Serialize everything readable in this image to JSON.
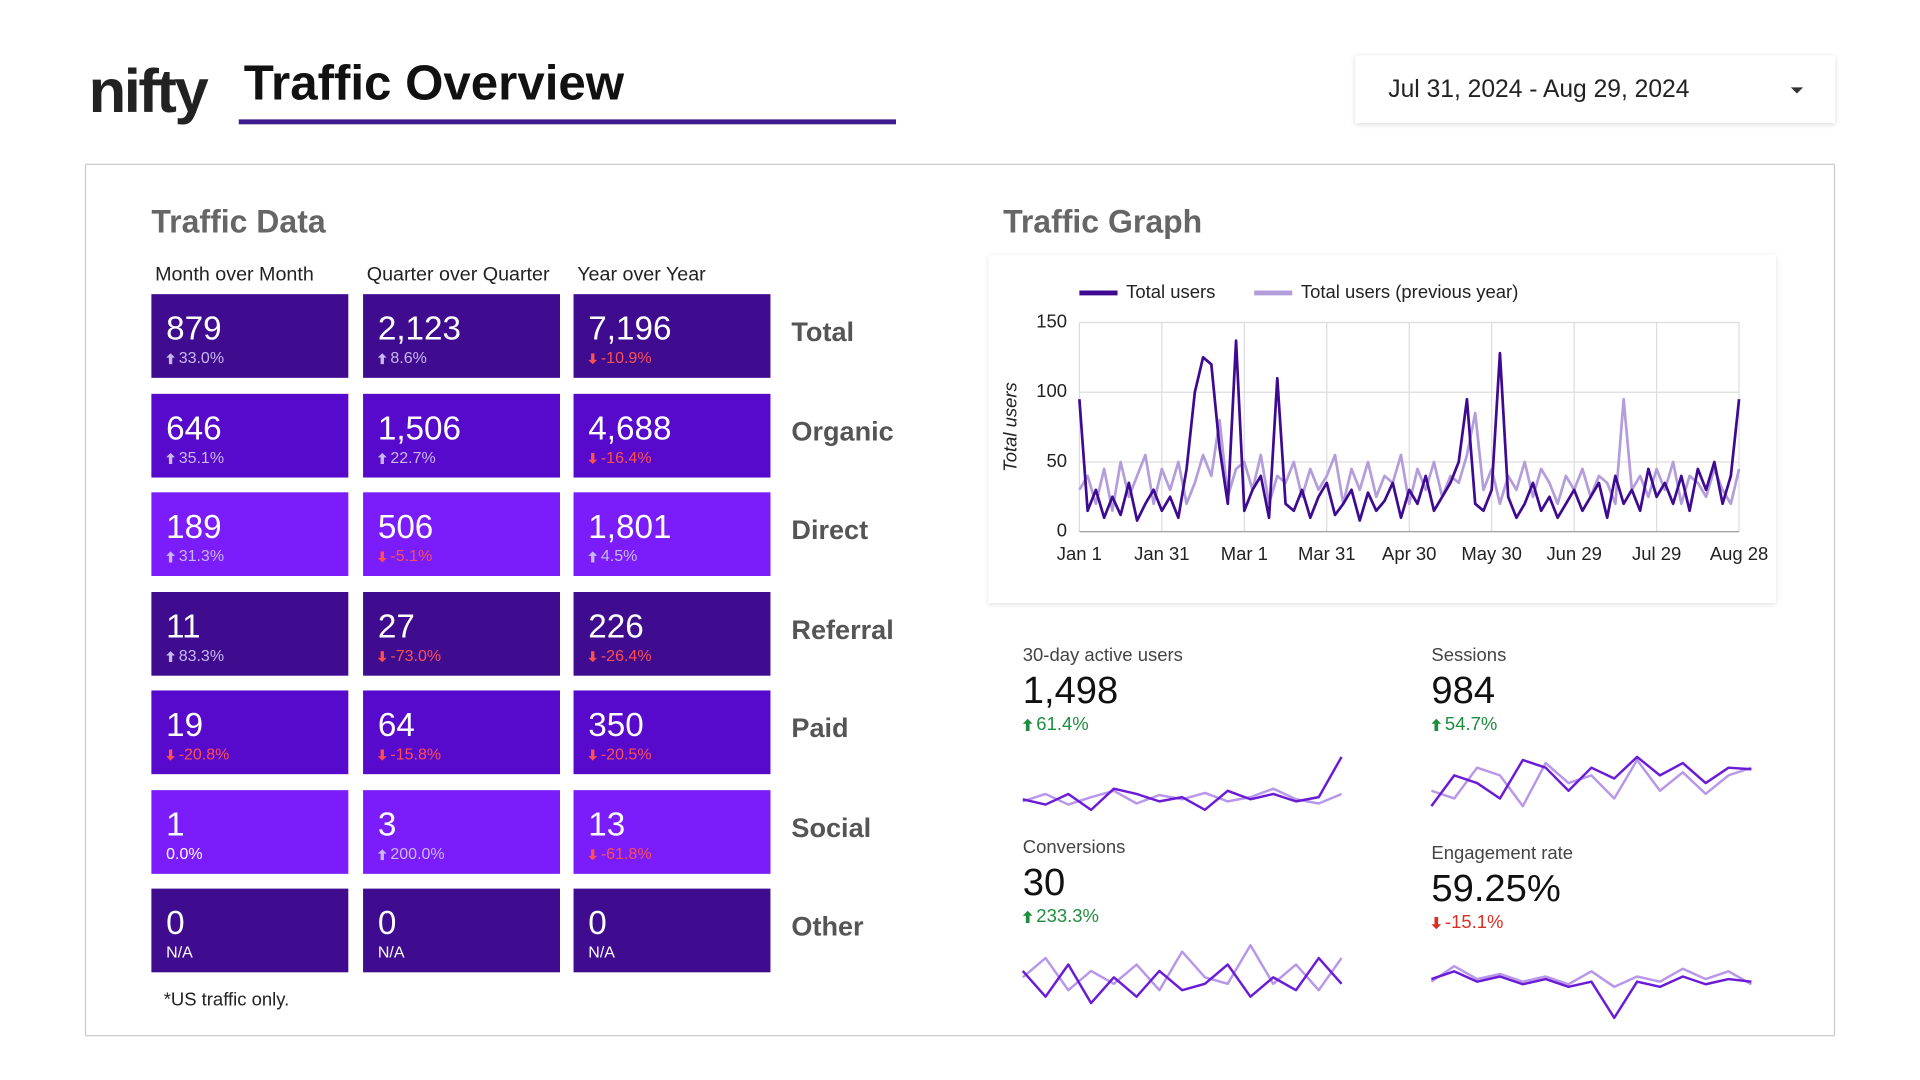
{
  "header": {
    "logo": "nifty",
    "title": "Traffic Overview",
    "date_range": "Jul 31, 2024 - Aug 29, 2024"
  },
  "traffic_data": {
    "title": "Traffic Data",
    "columns": [
      "Month over Month",
      "Quarter over Quarter",
      "Year over Year"
    ],
    "rows": [
      {
        "label": "Total",
        "color": "#3f0c8f",
        "cells": [
          {
            "value": "879",
            "change": "33.0%",
            "trend": "up"
          },
          {
            "value": "2,123",
            "change": "8.6%",
            "trend": "up"
          },
          {
            "value": "7,196",
            "change": "-10.9%",
            "trend": "down"
          }
        ]
      },
      {
        "label": "Organic",
        "color": "#5709cc",
        "cells": [
          {
            "value": "646",
            "change": "35.1%",
            "trend": "up"
          },
          {
            "value": "1,506",
            "change": "22.7%",
            "trend": "up"
          },
          {
            "value": "4,688",
            "change": "-16.4%",
            "trend": "down"
          }
        ]
      },
      {
        "label": "Direct",
        "color": "#7b1cfb",
        "cells": [
          {
            "value": "189",
            "change": "31.3%",
            "trend": "up"
          },
          {
            "value": "506",
            "change": "-5.1%",
            "trend": "down"
          },
          {
            "value": "1,801",
            "change": "4.5%",
            "trend": "up"
          }
        ]
      },
      {
        "label": "Referral",
        "color": "#3f0c8f",
        "cells": [
          {
            "value": "11",
            "change": "83.3%",
            "trend": "up"
          },
          {
            "value": "27",
            "change": "-73.0%",
            "trend": "down"
          },
          {
            "value": "226",
            "change": "-26.4%",
            "trend": "down"
          }
        ]
      },
      {
        "label": "Paid",
        "color": "#5709cc",
        "cells": [
          {
            "value": "19",
            "change": "-20.8%",
            "trend": "down"
          },
          {
            "value": "64",
            "change": "-15.8%",
            "trend": "down"
          },
          {
            "value": "350",
            "change": "-20.5%",
            "trend": "down"
          }
        ]
      },
      {
        "label": "Social",
        "color": "#7b1cfb",
        "cells": [
          {
            "value": "1",
            "change": "0.0%",
            "trend": "none"
          },
          {
            "value": "3",
            "change": "200.0%",
            "trend": "up"
          },
          {
            "value": "13",
            "change": "-61.8%",
            "trend": "down"
          }
        ]
      },
      {
        "label": "Other",
        "color": "#3f0c8f",
        "cells": [
          {
            "value": "0",
            "change": "N/A",
            "trend": "none"
          },
          {
            "value": "0",
            "change": "N/A",
            "trend": "none"
          },
          {
            "value": "0",
            "change": "N/A",
            "trend": "none"
          }
        ]
      }
    ],
    "footnote": "*US traffic only."
  },
  "graph_title": "Traffic Graph",
  "chart_data": {
    "type": "line",
    "y_label": "Total users",
    "categories": [
      "Jan 1",
      null,
      null,
      null,
      null,
      null,
      null,
      null,
      null,
      null,
      "Jan 31",
      null,
      null,
      null,
      null,
      null,
      null,
      null,
      null,
      null,
      "Mar 1",
      null,
      null,
      null,
      null,
      null,
      null,
      null,
      null,
      null,
      "Mar 31",
      null,
      null,
      null,
      null,
      null,
      null,
      null,
      null,
      null,
      "Apr 30",
      null,
      null,
      null,
      null,
      null,
      null,
      null,
      null,
      null,
      "May 30",
      null,
      null,
      null,
      null,
      null,
      null,
      null,
      null,
      null,
      "Jun 29",
      null,
      null,
      null,
      null,
      null,
      null,
      null,
      null,
      null,
      "Jul 29",
      null,
      null,
      null,
      null,
      null,
      null,
      null,
      null,
      null,
      "Aug 28"
    ],
    "series": [
      {
        "name": "Total users",
        "color": "#3d0a91",
        "values": [
          95,
          15,
          30,
          10,
          25,
          12,
          35,
          8,
          20,
          30,
          15,
          25,
          10,
          45,
          100,
          125,
          120,
          60,
          20,
          137,
          15,
          30,
          40,
          10,
          110,
          20,
          15,
          30,
          10,
          25,
          35,
          12,
          20,
          30,
          8,
          28,
          15,
          22,
          35,
          10,
          30,
          20,
          40,
          15,
          25,
          35,
          50,
          95,
          20,
          15,
          30,
          128,
          25,
          10,
          20,
          35,
          15,
          25,
          10,
          20,
          30,
          15,
          25,
          35,
          10,
          40,
          20,
          30,
          15,
          45,
          25,
          35,
          20,
          40,
          15,
          45,
          30,
          50,
          20,
          40,
          95
        ]
      },
      {
        "name": "Total users (previous year)",
        "color": "#b39ddb",
        "values": [
          30,
          40,
          20,
          45,
          15,
          50,
          25,
          40,
          55,
          20,
          45,
          30,
          50,
          20,
          35,
          55,
          40,
          80,
          25,
          45,
          50,
          30,
          55,
          20,
          40,
          35,
          50,
          25,
          45,
          30,
          40,
          55,
          20,
          45,
          30,
          50,
          25,
          40,
          35,
          55,
          20,
          45,
          30,
          50,
          25,
          40,
          35,
          55,
          85,
          30,
          45,
          20,
          40,
          30,
          50,
          25,
          45,
          35,
          20,
          40,
          30,
          45,
          25,
          40,
          35,
          20,
          95,
          30,
          40,
          25,
          45,
          30,
          50,
          20,
          40,
          35,
          25,
          45,
          30,
          20,
          45
        ]
      }
    ],
    "ylim": [
      0,
      150
    ],
    "yticks": [
      0,
      50,
      100,
      150
    ],
    "grid": true,
    "legend": "top"
  },
  "scorecards": [
    {
      "label": "30-day active users",
      "value": "1,498",
      "change": "61.4%",
      "trend": "up",
      "series": [
        {
          "color": "#6a1bd6",
          "values": [
            40,
            35,
            45,
            30,
            50,
            45,
            38,
            42,
            30,
            48,
            40,
            45,
            38,
            42,
            80
          ]
        },
        {
          "color": "#b897ea",
          "values": [
            38,
            45,
            35,
            42,
            48,
            36,
            44,
            40,
            46,
            38,
            42,
            50,
            40,
            36,
            45
          ]
        }
      ]
    },
    {
      "label": "Sessions",
      "value": "984",
      "change": "54.7%",
      "trend": "up",
      "series": [
        {
          "color": "#6a1bd6",
          "values": [
            30,
            50,
            45,
            35,
            60,
            55,
            40,
            55,
            48,
            62,
            50,
            58,
            45,
            55,
            54
          ]
        },
        {
          "color": "#b897ea",
          "values": [
            40,
            35,
            55,
            50,
            30,
            58,
            45,
            50,
            35,
            60,
            40,
            52,
            38,
            50,
            55
          ]
        }
      ]
    },
    {
      "label": "Conversions",
      "value": "30",
      "change": "233.3%",
      "trend": "up",
      "series": [
        {
          "color": "#6a1bd6",
          "values": [
            50,
            30,
            55,
            25,
            45,
            30,
            50,
            35,
            40,
            55,
            30,
            45,
            35,
            60,
            40
          ]
        },
        {
          "color": "#b897ea",
          "values": [
            45,
            60,
            35,
            50,
            40,
            55,
            35,
            65,
            45,
            40,
            70,
            40,
            55,
            35,
            60
          ]
        }
      ]
    },
    {
      "label": "Engagement rate",
      "value": "59.25%",
      "change": "-15.1%",
      "trend": "down",
      "series": [
        {
          "color": "#6a1bd6",
          "values": [
            45,
            48,
            44,
            46,
            43,
            45,
            42,
            44,
            30,
            44,
            42,
            46,
            43,
            45,
            44
          ]
        },
        {
          "color": "#b897ea",
          "values": [
            44,
            50,
            45,
            47,
            44,
            46,
            43,
            48,
            42,
            46,
            44,
            49,
            45,
            48,
            43
          ]
        }
      ]
    }
  ]
}
